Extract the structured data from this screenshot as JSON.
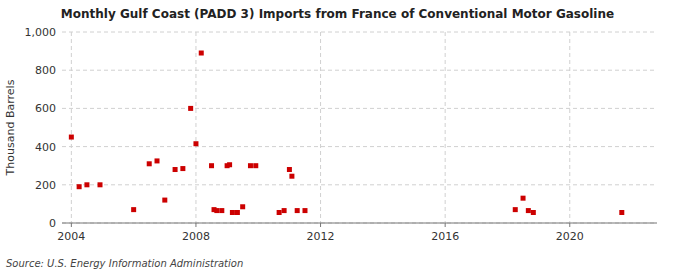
{
  "chart_data": {
    "type": "scatter",
    "title": "Monthly Gulf Coast (PADD 3) Imports from France of Conventional Motor Gasoline",
    "y_label": "Thousand Barrels",
    "source": "Source: U.S. Energy Information Administration",
    "color": "#cc0000",
    "marker": "square",
    "grid": true,
    "xlim": [
      2003.7,
      2022.8
    ],
    "xticks": [
      2004,
      2008,
      2012,
      2016,
      2020
    ],
    "ylim": [
      0,
      1000
    ],
    "yticks": [
      0,
      200,
      400,
      600,
      800,
      {
        "value": 1000,
        "label": "1,000"
      }
    ],
    "x": [
      2004.0,
      2004.25,
      2004.5,
      2004.92,
      2006.0,
      2006.5,
      2006.75,
      2007.0,
      2007.33,
      2007.58,
      2007.83,
      2008.0,
      2008.17,
      2008.5,
      2008.58,
      2008.67,
      2008.83,
      2009.0,
      2009.08,
      2009.17,
      2009.33,
      2009.5,
      2009.75,
      2009.92,
      2010.67,
      2010.83,
      2011.0,
      2011.08,
      2011.25,
      2011.5,
      2018.25,
      2018.5,
      2018.67,
      2018.83,
      2021.67
    ],
    "values": [
      450,
      190,
      200,
      200,
      70,
      310,
      325,
      120,
      280,
      285,
      600,
      415,
      890,
      300,
      70,
      65,
      65,
      300,
      305,
      55,
      55,
      85,
      300,
      300,
      55,
      65,
      280,
      245,
      65,
      65,
      70,
      130,
      65,
      55,
      55
    ]
  }
}
